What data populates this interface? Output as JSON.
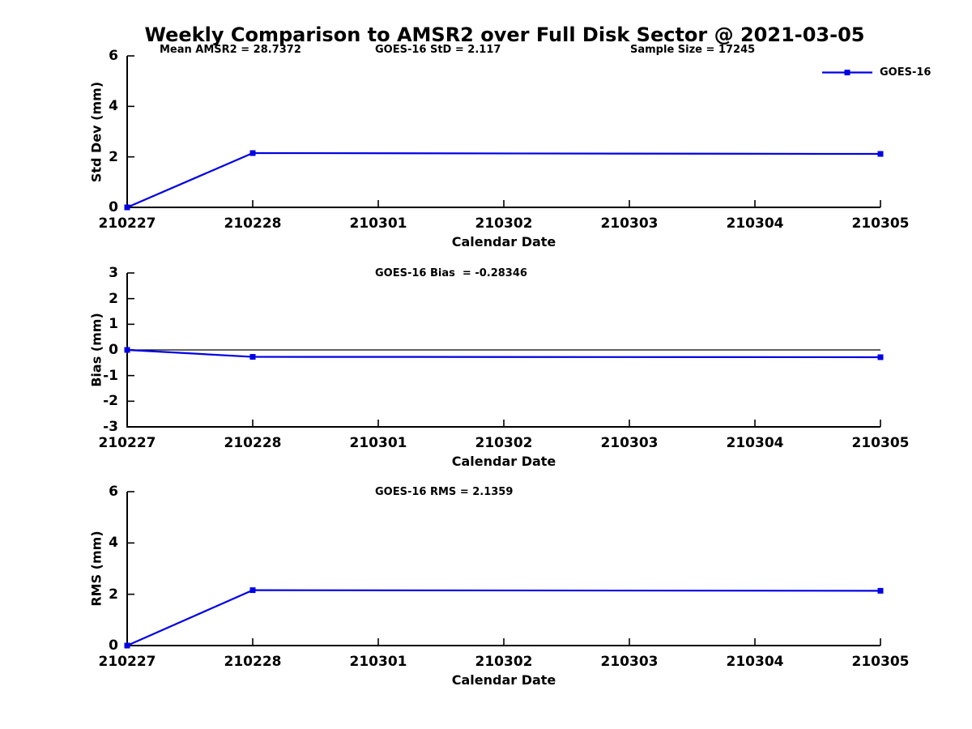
{
  "title": "Weekly Comparison to AMSR2 over Full Disk Sector @ 2021-03-05",
  "header_stats": [
    "Mean AMSR2 = 28.7372",
    "GOES-16 StD = 2.117",
    "Sample Size = 17245"
  ],
  "legend": {
    "label": "GOES-16",
    "color": "#0000e6"
  },
  "colors": {
    "series": "#0000e6",
    "axis": "#000000",
    "reference": "#000000"
  },
  "chart_data": [
    {
      "type": "line",
      "name": "std-dev",
      "title": "",
      "xlabel": "Calendar Date",
      "ylabel": "Std Dev (mm)",
      "ylim": [
        0,
        6
      ],
      "ytick_values": [
        6,
        4,
        2,
        0
      ],
      "ytick_labels": [
        "6",
        "4",
        "2",
        "0"
      ],
      "x_categories": [
        "210227",
        "210228",
        "210301",
        "210302",
        "210303",
        "210304",
        "210305"
      ],
      "series": [
        {
          "name": "GOES-16",
          "color": "#0000e6",
          "marker": "square",
          "x_idx": [
            0,
            1,
            6
          ],
          "values": [
            0,
            2.15,
            2.117
          ]
        }
      ],
      "reference_line_y": null,
      "grid": false,
      "legend_position": "top-right-outside"
    },
    {
      "type": "line",
      "name": "bias",
      "title": "GOES-16 Bias  = -0.28346",
      "xlabel": "Calendar Date",
      "ylabel": "Bias (mm)",
      "ylim": [
        -3,
        3
      ],
      "ytick_values": [
        3,
        2,
        1,
        0,
        -1,
        -2,
        -3
      ],
      "ytick_labels": [
        "3",
        "2",
        "1",
        "0",
        "-1",
        "-2",
        "-3"
      ],
      "x_categories": [
        "210227",
        "210228",
        "210301",
        "210302",
        "210303",
        "210304",
        "210305"
      ],
      "series": [
        {
          "name": "GOES-16",
          "color": "#0000e6",
          "marker": "square",
          "x_idx": [
            0,
            1,
            6
          ],
          "values": [
            0,
            -0.27,
            -0.28346
          ]
        }
      ],
      "reference_line_y": 0,
      "grid": false,
      "legend_position": "none"
    },
    {
      "type": "line",
      "name": "rms",
      "title": "GOES-16 RMS = 2.1359",
      "xlabel": "Calendar Date",
      "ylabel": "RMS (mm)",
      "ylim": [
        0,
        6
      ],
      "ytick_values": [
        6,
        4,
        2,
        0
      ],
      "ytick_labels": [
        "6",
        "4",
        "2",
        "0"
      ],
      "x_categories": [
        "210227",
        "210228",
        "210301",
        "210302",
        "210303",
        "210304",
        "210305"
      ],
      "series": [
        {
          "name": "GOES-16",
          "color": "#0000e6",
          "marker": "square",
          "x_idx": [
            0,
            1,
            6
          ],
          "values": [
            0,
            2.16,
            2.1359
          ]
        }
      ],
      "reference_line_y": null,
      "grid": false,
      "legend_position": "none"
    }
  ]
}
